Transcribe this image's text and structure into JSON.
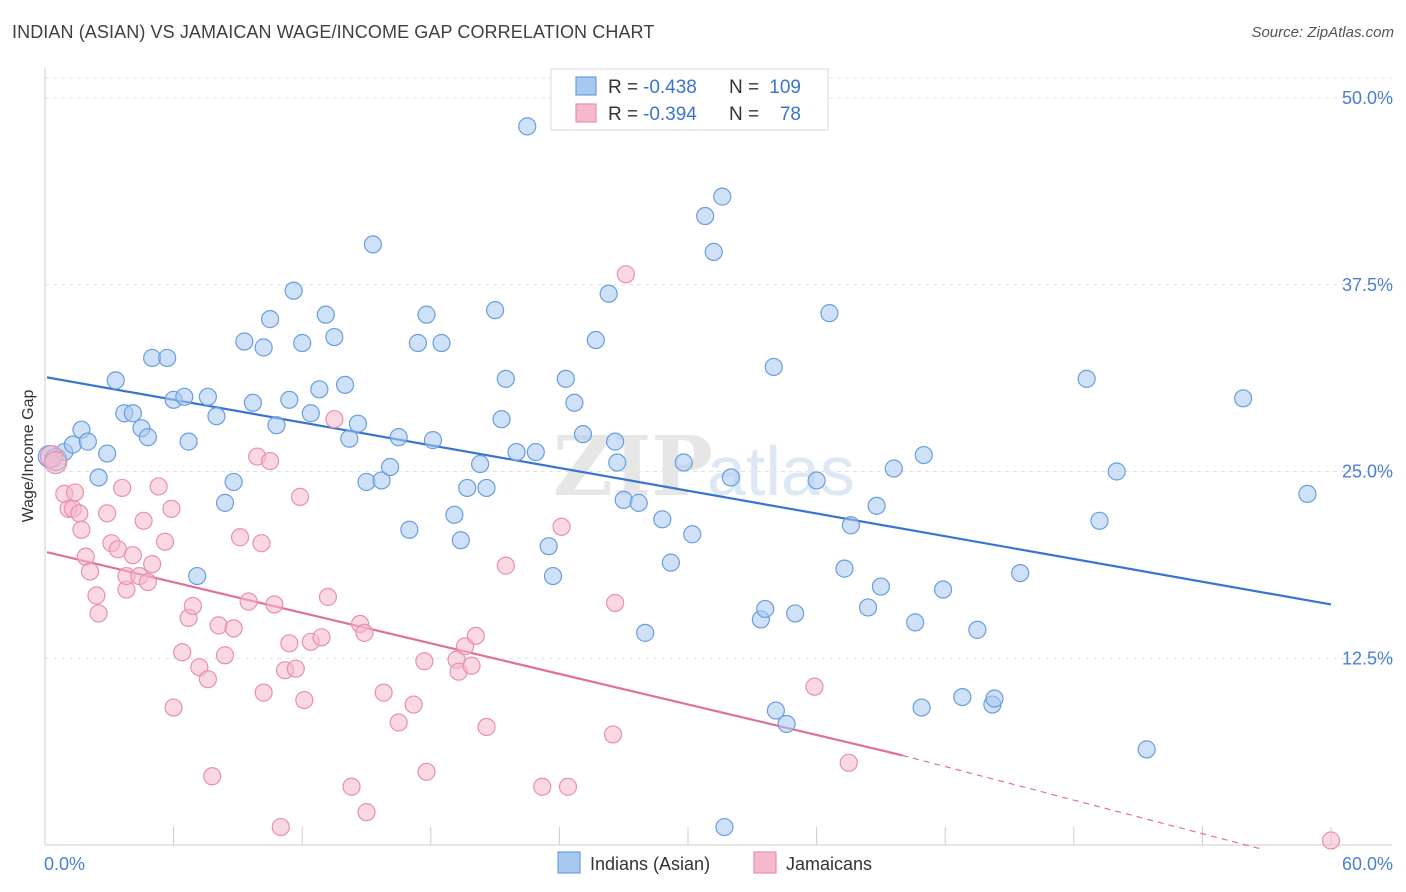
{
  "title": "INDIAN (ASIAN) VS JAMAICAN WAGE/INCOME GAP CORRELATION CHART",
  "source": "Source: ZipAtlas.com",
  "watermark": "ZIPatlas",
  "colors": {
    "blue_fill": "#a8c8f0",
    "blue_stroke": "#6a9de0",
    "blue_line": "#3a74d0",
    "pink_fill": "#f5b8cc",
    "pink_stroke": "#e890ae",
    "pink_line": "#e0709a",
    "axis_label": "#4a7fd0",
    "grid": "#e0e0e0"
  },
  "legend": {
    "r_label": "R =",
    "n_label": "N =",
    "rows": [
      {
        "r": "-0.438",
        "n": "109",
        "series": "Indians (Asian)"
      },
      {
        "r": "-0.394",
        "n": "78",
        "series": "Jamaicans"
      }
    ]
  },
  "chart_data": {
    "type": "scatter",
    "title": "INDIAN (ASIAN) VS JAMAICAN WAGE/INCOME GAP CORRELATION CHART",
    "xlabel": "",
    "ylabel": "Wage/Income Gap",
    "xlim": [
      0,
      60
    ],
    "ylim": [
      0,
      50
    ],
    "x_tick_labels": [
      "0.0%",
      "60.0%"
    ],
    "y_tick_labels": [
      "12.5%",
      "25.0%",
      "37.5%",
      "50.0%"
    ],
    "y_ticks": [
      12.5,
      25.0,
      37.5,
      50.0
    ],
    "grid": true,
    "legend_position": "top-center",
    "series": [
      {
        "name": "Indians (Asian)",
        "color": "#a8c8f0",
        "r": -0.438,
        "n": 109,
        "trend": {
          "x": [
            0,
            60
          ],
          "y": [
            31.3,
            16.1
          ]
        },
        "points": [
          [
            0.2,
            26.0
          ],
          [
            0.5,
            25.8
          ],
          [
            0.9,
            26.3
          ],
          [
            1.3,
            26.8
          ],
          [
            1.7,
            27.8
          ],
          [
            2.0,
            27.0
          ],
          [
            2.5,
            24.6
          ],
          [
            2.9,
            26.2
          ],
          [
            3.3,
            31.1
          ],
          [
            3.7,
            28.9
          ],
          [
            4.1,
            28.9
          ],
          [
            4.5,
            27.9
          ],
          [
            4.8,
            27.3
          ],
          [
            5.0,
            32.6
          ],
          [
            5.7,
            32.6
          ],
          [
            6.0,
            29.8
          ],
          [
            6.5,
            30.0
          ],
          [
            6.7,
            27.0
          ],
          [
            7.1,
            18.0
          ],
          [
            7.6,
            30.0
          ],
          [
            8.0,
            28.7
          ],
          [
            8.4,
            22.9
          ],
          [
            8.8,
            24.3
          ],
          [
            9.3,
            33.7
          ],
          [
            9.7,
            29.6
          ],
          [
            10.2,
            33.3
          ],
          [
            10.5,
            35.2
          ],
          [
            10.8,
            28.1
          ],
          [
            11.4,
            29.8
          ],
          [
            11.6,
            37.1
          ],
          [
            12.0,
            33.6
          ],
          [
            12.4,
            28.9
          ],
          [
            12.8,
            30.5
          ],
          [
            13.1,
            35.5
          ],
          [
            13.5,
            34.0
          ],
          [
            14.0,
            30.8
          ],
          [
            14.2,
            27.2
          ],
          [
            14.6,
            28.2
          ],
          [
            15.0,
            24.3
          ],
          [
            15.3,
            40.2
          ],
          [
            15.7,
            24.4
          ],
          [
            16.1,
            25.3
          ],
          [
            16.5,
            27.3
          ],
          [
            17.0,
            21.1
          ],
          [
            17.4,
            33.6
          ],
          [
            17.8,
            35.5
          ],
          [
            18.1,
            27.1
          ],
          [
            18.5,
            33.6
          ],
          [
            19.1,
            22.1
          ],
          [
            19.4,
            20.4
          ],
          [
            19.7,
            23.9
          ],
          [
            20.3,
            25.5
          ],
          [
            20.6,
            23.9
          ],
          [
            21.0,
            35.8
          ],
          [
            21.3,
            28.5
          ],
          [
            21.5,
            31.2
          ],
          [
            22.0,
            26.3
          ],
          [
            22.5,
            48.1
          ],
          [
            22.9,
            26.3
          ],
          [
            23.5,
            20.0
          ],
          [
            23.7,
            18.0
          ],
          [
            24.3,
            31.2
          ],
          [
            24.7,
            29.6
          ],
          [
            25.1,
            27.5
          ],
          [
            25.7,
            33.8
          ],
          [
            26.3,
            36.9
          ],
          [
            26.6,
            27.0
          ],
          [
            26.7,
            25.6
          ],
          [
            27.0,
            23.1
          ],
          [
            27.7,
            22.9
          ],
          [
            28.0,
            14.2
          ],
          [
            28.8,
            21.8
          ],
          [
            29.2,
            18.9
          ],
          [
            29.8,
            25.6
          ],
          [
            30.2,
            20.8
          ],
          [
            30.8,
            42.1
          ],
          [
            31.2,
            39.7
          ],
          [
            31.6,
            43.4
          ],
          [
            32.0,
            24.6
          ],
          [
            31.7,
            1.2
          ],
          [
            33.4,
            15.1
          ],
          [
            33.6,
            15.8
          ],
          [
            34.0,
            32.0
          ],
          [
            34.1,
            9.0
          ],
          [
            34.6,
            8.1
          ],
          [
            35.0,
            15.5
          ],
          [
            36.0,
            24.4
          ],
          [
            36.6,
            35.6
          ],
          [
            37.3,
            18.5
          ],
          [
            37.6,
            21.4
          ],
          [
            38.4,
            15.9
          ],
          [
            38.8,
            22.7
          ],
          [
            39.0,
            17.3
          ],
          [
            39.6,
            25.2
          ],
          [
            40.6,
            14.9
          ],
          [
            40.9,
            9.2
          ],
          [
            41.0,
            26.1
          ],
          [
            41.9,
            17.1
          ],
          [
            42.8,
            9.9
          ],
          [
            43.5,
            14.4
          ],
          [
            44.2,
            9.4
          ],
          [
            44.3,
            9.8
          ],
          [
            45.5,
            18.2
          ],
          [
            48.6,
            31.2
          ],
          [
            49.2,
            21.7
          ],
          [
            50.0,
            25.0
          ],
          [
            51.4,
            6.4
          ],
          [
            55.9,
            29.9
          ],
          [
            58.9,
            23.5
          ]
        ]
      },
      {
        "name": "Jamaicans",
        "color": "#f5b8cc",
        "r": -0.394,
        "n": 78,
        "trend": {
          "x": [
            0,
            40
          ],
          "y": [
            19.6,
            6.0
          ]
        },
        "trend_dashed": {
          "x": [
            40,
            60
          ],
          "y": [
            6.0,
            -0.8
          ]
        },
        "points": [
          [
            0.3,
            26.0
          ],
          [
            0.5,
            25.6
          ],
          [
            0.9,
            23.5
          ],
          [
            1.1,
            22.5
          ],
          [
            1.3,
            22.5
          ],
          [
            1.4,
            23.6
          ],
          [
            1.6,
            22.2
          ],
          [
            1.7,
            21.1
          ],
          [
            1.9,
            19.3
          ],
          [
            2.1,
            18.3
          ],
          [
            2.4,
            16.7
          ],
          [
            2.5,
            15.5
          ],
          [
            2.9,
            22.2
          ],
          [
            3.1,
            20.2
          ],
          [
            3.4,
            19.8
          ],
          [
            3.6,
            23.9
          ],
          [
            3.8,
            17.1
          ],
          [
            3.8,
            18.0
          ],
          [
            4.1,
            19.4
          ],
          [
            4.4,
            18.0
          ],
          [
            4.6,
            21.7
          ],
          [
            4.8,
            17.6
          ],
          [
            5.0,
            18.8
          ],
          [
            5.3,
            24.0
          ],
          [
            5.6,
            20.3
          ],
          [
            5.9,
            22.5
          ],
          [
            6.0,
            9.2
          ],
          [
            6.4,
            12.9
          ],
          [
            6.7,
            15.2
          ],
          [
            6.9,
            16.0
          ],
          [
            7.2,
            11.9
          ],
          [
            7.6,
            11.1
          ],
          [
            7.8,
            4.6
          ],
          [
            8.1,
            14.7
          ],
          [
            8.4,
            12.7
          ],
          [
            8.8,
            14.5
          ],
          [
            9.1,
            20.6
          ],
          [
            9.5,
            16.3
          ],
          [
            9.9,
            26.0
          ],
          [
            10.1,
            20.2
          ],
          [
            10.2,
            10.2
          ],
          [
            10.5,
            25.7
          ],
          [
            10.7,
            16.1
          ],
          [
            11.0,
            1.2
          ],
          [
            11.2,
            11.7
          ],
          [
            11.4,
            13.5
          ],
          [
            11.7,
            11.8
          ],
          [
            11.9,
            23.3
          ],
          [
            12.1,
            9.7
          ],
          [
            12.4,
            13.6
          ],
          [
            12.9,
            13.9
          ],
          [
            13.2,
            16.6
          ],
          [
            13.5,
            28.5
          ],
          [
            14.3,
            3.9
          ],
          [
            14.7,
            14.8
          ],
          [
            14.9,
            14.2
          ],
          [
            15.0,
            2.2
          ],
          [
            15.8,
            10.2
          ],
          [
            16.5,
            8.2
          ],
          [
            17.2,
            9.4
          ],
          [
            17.7,
            12.3
          ],
          [
            17.8,
            4.9
          ],
          [
            19.2,
            12.4
          ],
          [
            19.3,
            11.6
          ],
          [
            19.6,
            13.3
          ],
          [
            19.9,
            12.0
          ],
          [
            20.1,
            14.0
          ],
          [
            20.6,
            7.9
          ],
          [
            21.5,
            18.7
          ],
          [
            23.2,
            3.9
          ],
          [
            24.1,
            21.3
          ],
          [
            24.4,
            3.9
          ],
          [
            26.5,
            7.4
          ],
          [
            26.6,
            16.2
          ],
          [
            27.1,
            38.2
          ],
          [
            35.9,
            10.6
          ],
          [
            37.5,
            5.5
          ],
          [
            60.0,
            0.3
          ]
        ]
      }
    ]
  },
  "bottom_legend": [
    {
      "label": "Indians (Asian)"
    },
    {
      "label": "Jamaicans"
    }
  ]
}
